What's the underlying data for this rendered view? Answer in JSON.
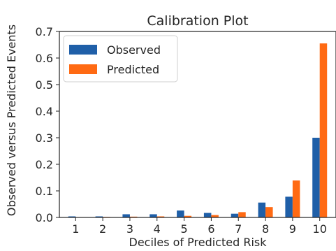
{
  "chart_data": {
    "type": "bar",
    "title": "Calibration Plot",
    "xlabel": "Deciles of Predicted Risk",
    "ylabel": "Observed versus Predicted Events",
    "categories": [
      "1",
      "2",
      "3",
      "4",
      "5",
      "6",
      "7",
      "8",
      "9",
      "10"
    ],
    "series": [
      {
        "name": "Observed",
        "color": "#1f5fa8",
        "values": [
          0.004,
          0.004,
          0.012,
          0.012,
          0.026,
          0.017,
          0.014,
          0.056,
          0.078,
          0.3
        ]
      },
      {
        "name": "Predicted",
        "color": "#ff6a13",
        "values": [
          0.001,
          0.002,
          0.003,
          0.004,
          0.006,
          0.009,
          0.02,
          0.039,
          0.139,
          0.655
        ]
      }
    ],
    "ylim": [
      0,
      0.7
    ],
    "yticks": [
      "0.0",
      "0.1",
      "0.2",
      "0.3",
      "0.4",
      "0.5",
      "0.6",
      "0.7"
    ],
    "grid": false,
    "legend_position": "top-left"
  }
}
